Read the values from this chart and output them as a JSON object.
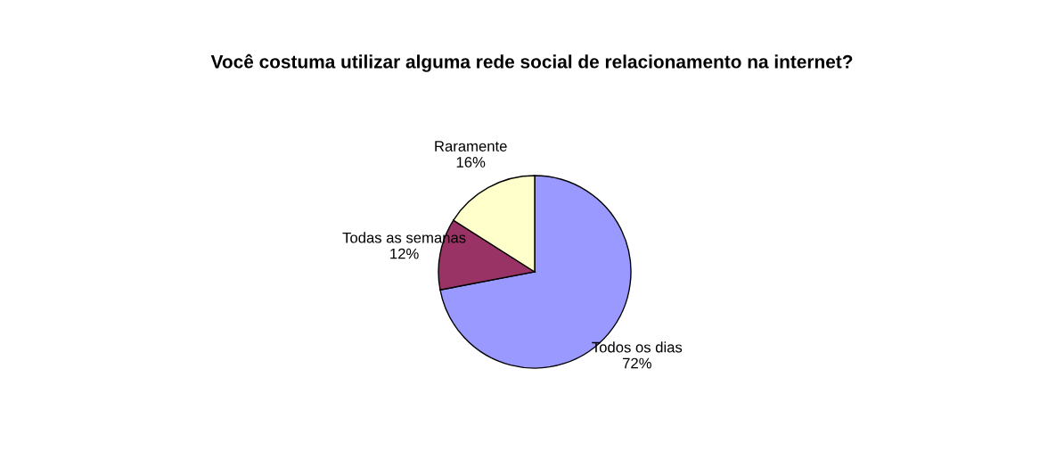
{
  "chart_data": {
    "type": "pie",
    "title": "Você costuma utilizar alguma rede social de relacionamento na internet?",
    "categories": [
      "Todos os dias",
      "Todas as semanas",
      "Raramente"
    ],
    "values": [
      72,
      12,
      16
    ],
    "colors": [
      "#9999ff",
      "#993366",
      "#ffffcc"
    ],
    "value_labels": [
      "72%",
      "12%",
      "16%"
    ]
  }
}
